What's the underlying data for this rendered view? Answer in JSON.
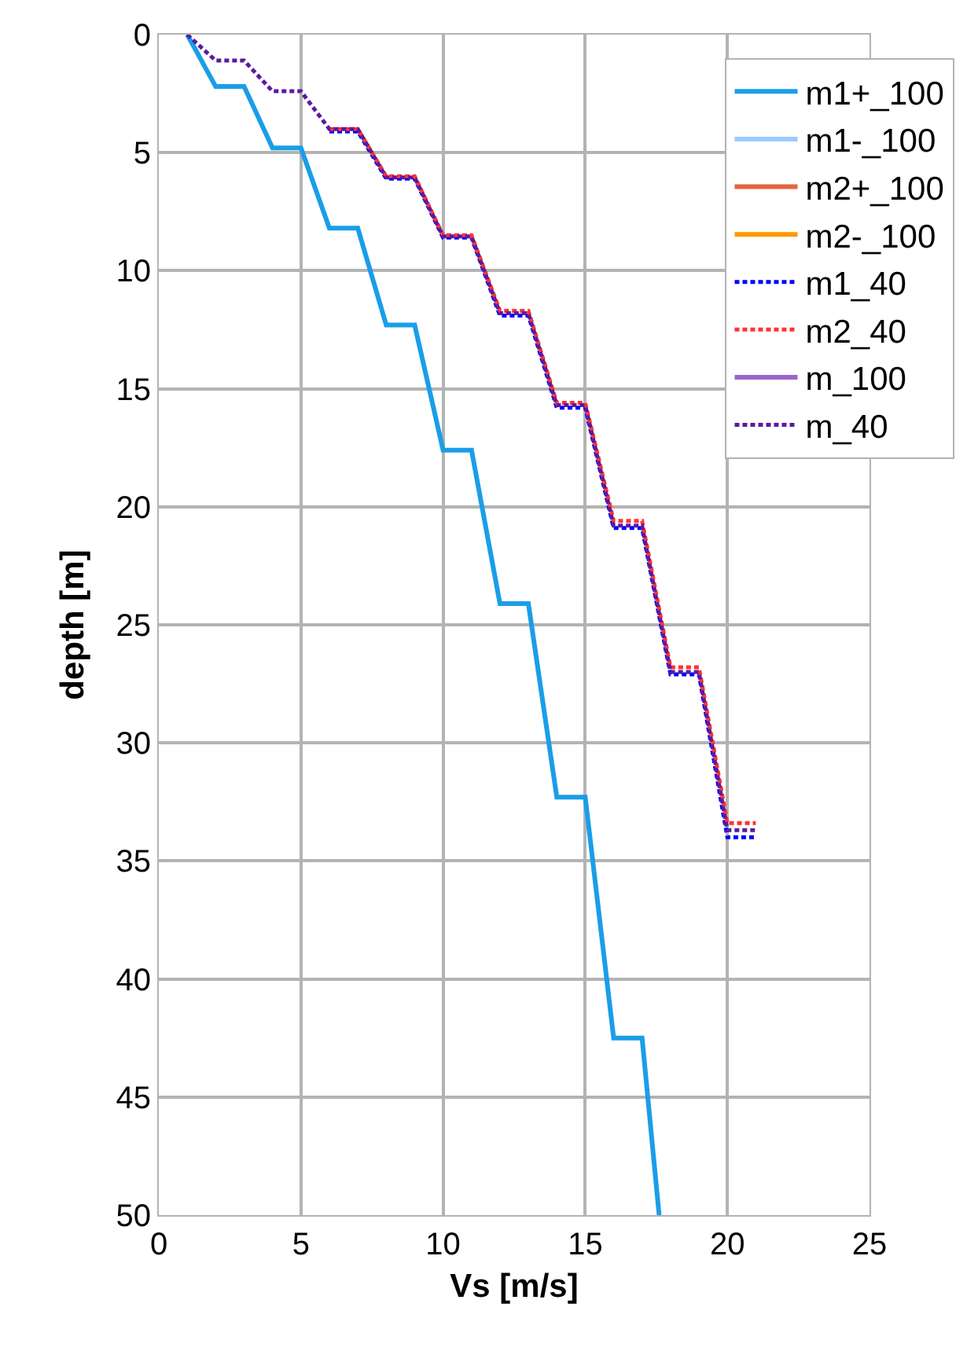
{
  "chart_data": {
    "type": "line",
    "xlabel": "Vs [m/s]",
    "ylabel": "depth [m]",
    "xlim": [
      0,
      25
    ],
    "xticks": [
      0,
      5,
      10,
      15,
      20,
      25
    ],
    "ylim": [
      50,
      0
    ],
    "yticks": [
      0,
      5,
      10,
      15,
      20,
      25,
      30,
      35,
      40,
      45,
      50
    ],
    "grid": true,
    "legend": "top right",
    "marker": "none",
    "series": [
      {
        "name": "m1+_100",
        "color": "#1a9ee8",
        "line_style": "solid",
        "x": [
          1,
          2,
          3,
          4,
          5,
          6,
          7,
          8,
          9,
          10,
          11,
          12,
          13,
          14,
          15,
          16,
          17,
          17.6
        ],
        "values": [
          0,
          2.2,
          2.2,
          4.8,
          4.8,
          8.2,
          8.2,
          12.3,
          12.3,
          17.6,
          17.6,
          24.1,
          24.1,
          32.3,
          32.3,
          42.5,
          42.5,
          50
        ]
      },
      {
        "name": "m1-_100",
        "color": "#99ccff",
        "line_style": "solid"
      },
      {
        "name": "m2+_100",
        "color": "#e8643c",
        "line_style": "solid"
      },
      {
        "name": "m2-_100",
        "color": "#ff9900",
        "line_style": "solid"
      },
      {
        "name": "m1_40",
        "color": "#0000ff",
        "line_style": "dotted",
        "x": [
          6,
          7,
          8,
          9,
          10,
          11,
          12,
          13,
          14,
          15,
          16,
          17,
          18,
          19,
          20,
          21
        ],
        "values": [
          4.1,
          4.1,
          6.1,
          6.1,
          8.6,
          8.6,
          11.9,
          11.9,
          15.8,
          15.8,
          20.9,
          20.9,
          27.1,
          27.1,
          34.0,
          34.0
        ]
      },
      {
        "name": "m2_40",
        "color": "#ff3333",
        "line_style": "dotted",
        "x": [
          6,
          7,
          8,
          9,
          10,
          11,
          12,
          13,
          14,
          15,
          16,
          17,
          18,
          19,
          20,
          21
        ],
        "values": [
          4.0,
          4.0,
          6.0,
          6.0,
          8.5,
          8.5,
          11.7,
          11.7,
          15.6,
          15.6,
          20.6,
          20.6,
          26.8,
          26.8,
          33.4,
          33.4
        ]
      },
      {
        "name": "m_100",
        "color": "#9966cc",
        "line_style": "solid"
      },
      {
        "name": "m_40",
        "color": "#5b1a9e",
        "line_style": "dotted",
        "x": [
          1,
          2,
          3,
          4,
          5,
          6,
          7,
          8,
          9,
          10,
          11,
          12,
          13,
          14,
          15,
          16,
          17,
          18,
          19,
          20,
          21
        ],
        "values": [
          0,
          1.1,
          1.1,
          2.4,
          2.4,
          4.0,
          4.0,
          6.05,
          6.05,
          8.55,
          8.55,
          11.8,
          11.8,
          15.7,
          15.7,
          20.8,
          20.8,
          27.0,
          27.0,
          33.7,
          33.7
        ]
      }
    ]
  }
}
